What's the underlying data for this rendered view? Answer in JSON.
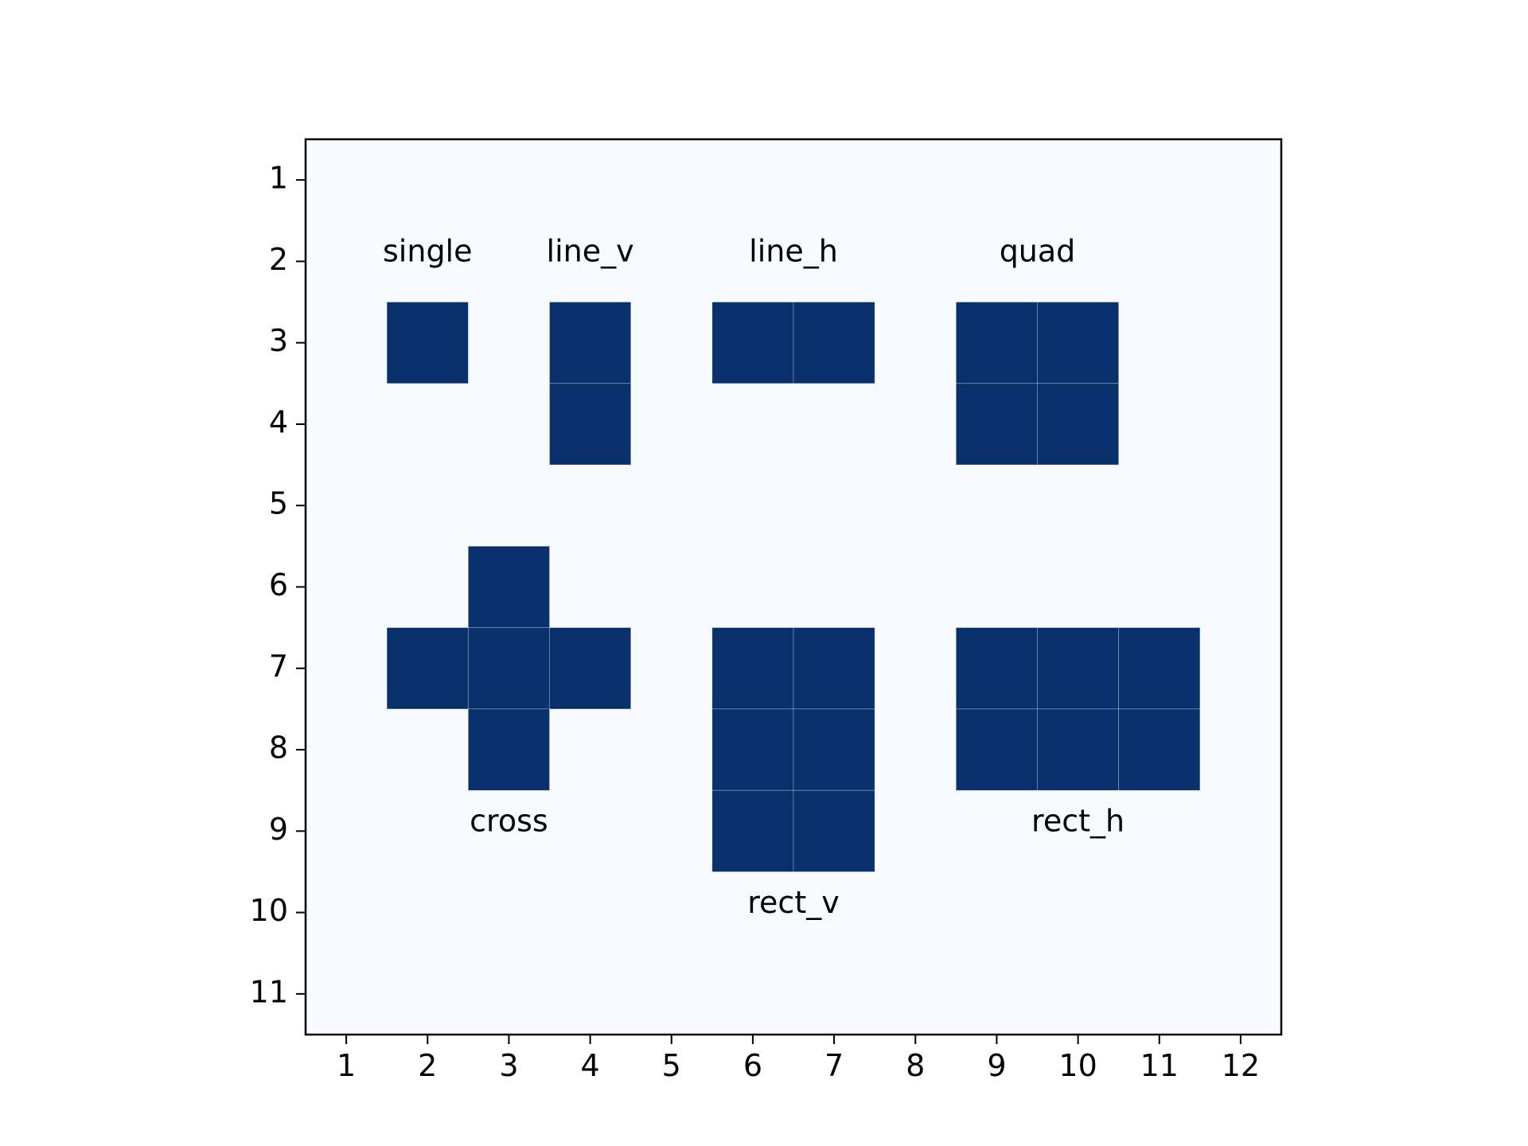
{
  "chart_data": {
    "type": "heatmap",
    "title": "",
    "xlabel": "",
    "ylabel": "",
    "x_ticks": [
      1,
      2,
      3,
      4,
      5,
      6,
      7,
      8,
      9,
      10,
      11,
      12
    ],
    "y_ticks": [
      1,
      2,
      3,
      4,
      5,
      6,
      7,
      8,
      9,
      10,
      11
    ],
    "xlim": [
      0.5,
      12.5
    ],
    "ylim": [
      11.5,
      0.5
    ],
    "y_axis_inverted": true,
    "grid": false,
    "colors": {
      "filled": "#08306b",
      "empty": "#f7fbff"
    },
    "shapes": [
      {
        "label": "single",
        "cells": [
          [
            2,
            3
          ]
        ]
      },
      {
        "label": "line_v",
        "cells": [
          [
            4,
            3
          ],
          [
            4,
            4
          ]
        ]
      },
      {
        "label": "line_h",
        "cells": [
          [
            6,
            3
          ],
          [
            7,
            3
          ]
        ]
      },
      {
        "label": "quad",
        "cells": [
          [
            9,
            3
          ],
          [
            10,
            3
          ],
          [
            9,
            4
          ],
          [
            10,
            4
          ]
        ]
      },
      {
        "label": "cross",
        "cells": [
          [
            3,
            6
          ],
          [
            2,
            7
          ],
          [
            3,
            7
          ],
          [
            4,
            7
          ],
          [
            3,
            8
          ]
        ]
      },
      {
        "label": "rect_v",
        "cells": [
          [
            6,
            7
          ],
          [
            7,
            7
          ],
          [
            6,
            8
          ],
          [
            7,
            8
          ],
          [
            6,
            9
          ],
          [
            7,
            9
          ]
        ]
      },
      {
        "label": "rect_h",
        "cells": [
          [
            9,
            7
          ],
          [
            10,
            7
          ],
          [
            11,
            7
          ],
          [
            9,
            8
          ],
          [
            10,
            8
          ],
          [
            11,
            8
          ]
        ]
      }
    ]
  }
}
